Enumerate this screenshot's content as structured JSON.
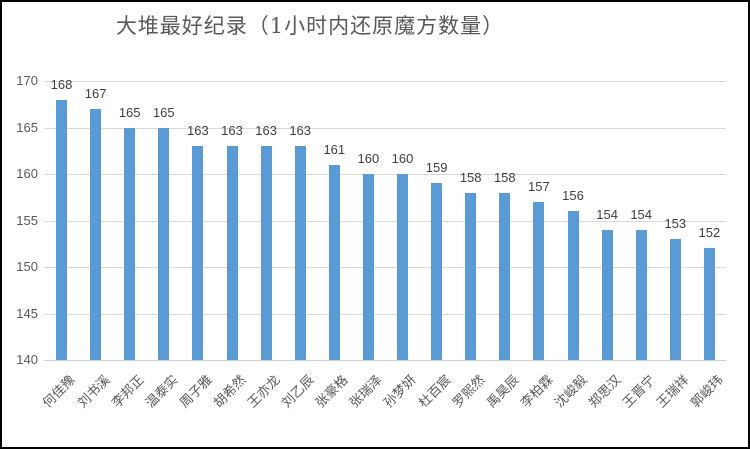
{
  "chart_data": {
    "type": "bar",
    "title": "大堆最好纪录（1小时内还原魔方数量）",
    "xlabel": "",
    "ylabel": "",
    "ylim": [
      140,
      170
    ],
    "yticks": [
      140,
      145,
      150,
      155,
      160,
      165,
      170
    ],
    "grid": true,
    "legend": "none",
    "data_labels": true,
    "bar_color": "#5b9bd5",
    "categories": [
      "何佳豫",
      "刘书溪",
      "李邦正",
      "温泰实",
      "周子雅",
      "胡希然",
      "王亦龙",
      "刘乙辰",
      "张豪格",
      "张瑞泽",
      "孙梦妍",
      "杜百宸",
      "罗熙然",
      "禹昊辰",
      "李柏霖",
      "沈峻毅",
      "郑思汉",
      "王晋宁",
      "王瑞祥",
      "郭峻玮"
    ],
    "values": [
      168,
      167,
      165,
      165,
      163,
      163,
      163,
      163,
      161,
      160,
      160,
      159,
      158,
      158,
      157,
      156,
      154,
      154,
      153,
      152
    ]
  }
}
